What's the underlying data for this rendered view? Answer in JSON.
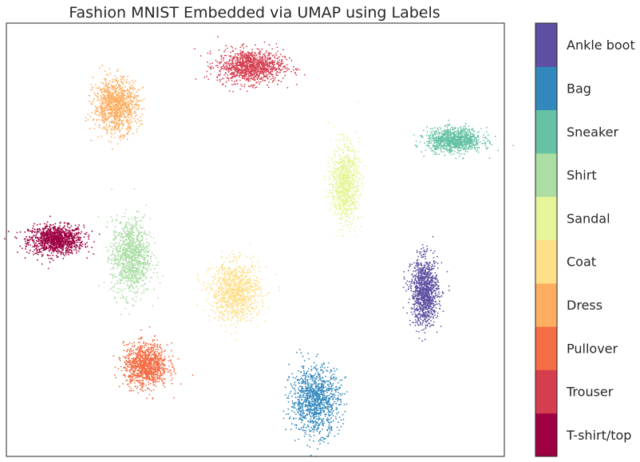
{
  "chart_data": {
    "type": "scatter",
    "title": "Fashion MNIST Embedded via UMAP using Labels",
    "xlabel": "",
    "ylabel": "",
    "xlim": [
      0,
      100
    ],
    "ylim": [
      0,
      100
    ],
    "grid": false,
    "legend": "colorbar-right",
    "colorbar": {
      "labels": [
        "T-shirt/top",
        "Trouser",
        "Pullover",
        "Dress",
        "Coat",
        "Sandal",
        "Shirt",
        "Sneaker",
        "Bag",
        "Ankle boot"
      ],
      "colors": [
        "#9e0142",
        "#d53e4f",
        "#f46d43",
        "#fdae61",
        "#fee08b",
        "#e6f598",
        "#abdda4",
        "#66c2a5",
        "#3288bd",
        "#5e4fa2"
      ]
    },
    "series": [
      {
        "name": "T-shirt/top",
        "color": "#9e0142",
        "center": [
          10,
          50
        ],
        "spread": [
          5,
          3
        ],
        "count": 1100
      },
      {
        "name": "Trouser",
        "color": "#d53e4f",
        "center": [
          49,
          90
        ],
        "spread": [
          6,
          3.5
        ],
        "count": 1100
      },
      {
        "name": "Pullover",
        "color": "#f46d43",
        "center": [
          28,
          21
        ],
        "spread": [
          4,
          4.5
        ],
        "count": 1100
      },
      {
        "name": "Dress",
        "color": "#fdae61",
        "center": [
          22,
          81
        ],
        "spread": [
          4,
          5.5
        ],
        "count": 1100
      },
      {
        "name": "Coat",
        "color": "#fee08b",
        "center": [
          46,
          38
        ],
        "spread": [
          4.5,
          6
        ],
        "count": 1100
      },
      {
        "name": "Sandal",
        "color": "#e6f598",
        "center": [
          68,
          63
        ],
        "spread": [
          2.5,
          8
        ],
        "count": 1000
      },
      {
        "name": "Shirt",
        "color": "#abdda4",
        "center": [
          25,
          46
        ],
        "spread": [
          3.5,
          8
        ],
        "count": 1100
      },
      {
        "name": "Sneaker",
        "color": "#66c2a5",
        "center": [
          90,
          73
        ],
        "spread": [
          5,
          2.5
        ],
        "count": 1000
      },
      {
        "name": "Bag",
        "color": "#3288bd",
        "center": [
          62,
          13
        ],
        "spread": [
          4.5,
          7
        ],
        "count": 1100
      },
      {
        "name": "Ankle boot",
        "color": "#5e4fa2",
        "center": [
          84,
          38
        ],
        "spread": [
          2.5,
          7
        ],
        "count": 1100
      }
    ]
  }
}
